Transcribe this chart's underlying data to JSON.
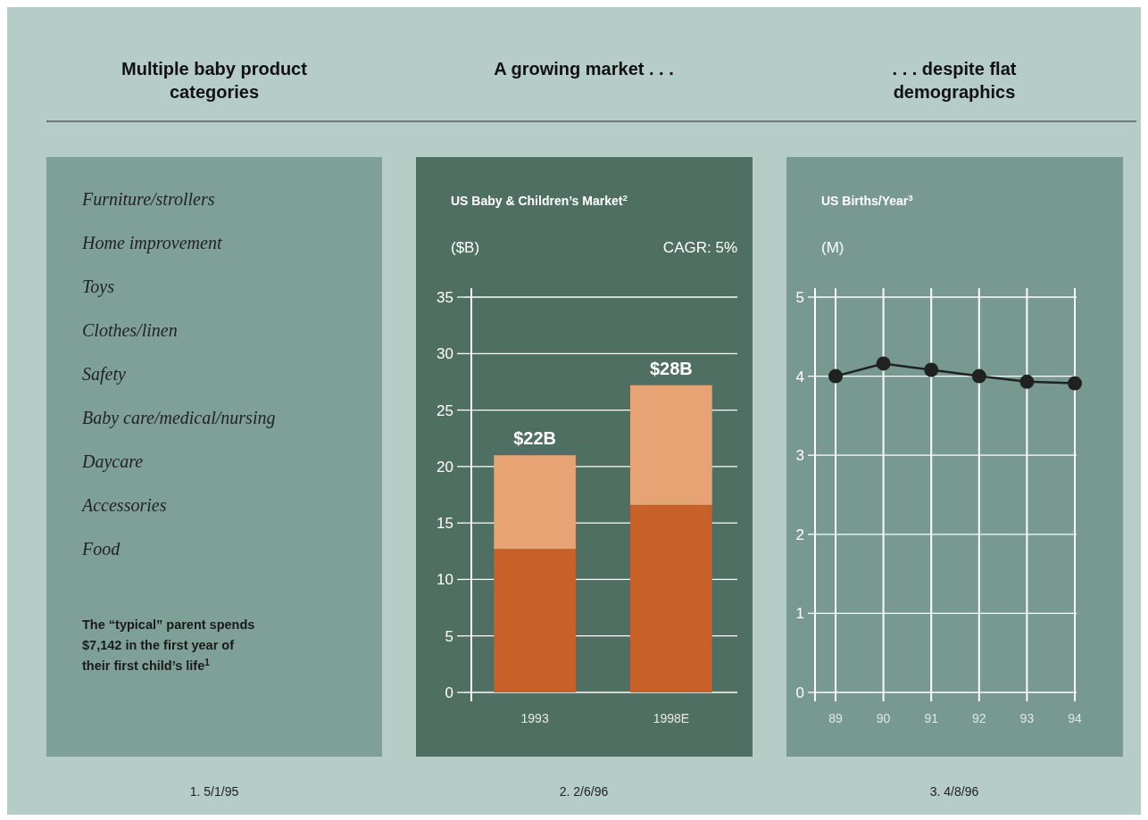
{
  "chart_data": [
    {
      "type": "other",
      "title": "Multiple baby product categories",
      "annotations": [
        "Furniture/strollers",
        "Home improvement",
        "Toys",
        "Clothes/linen",
        "Safety",
        "Baby care/medical/nursing",
        "Daycare",
        "Accessories",
        "Food",
        "The “typical” parent spends $7,142 in the first year of their first child’s life$^{1}$",
        "1. 5/1/95"
      ]
    },
    {
      "type": "bar",
      "title": "A growing market . . .",
      "subtitle": "US Baby & Children’s Market$^{2}$",
      "ylabel": "($B)",
      "annotations": [
        "CAGR: 5%",
        "2. 2/6/96"
      ],
      "categories": [
        "1993",
        "1998E"
      ],
      "stacked": true,
      "series": [
        {
          "color": "#c8602a",
          "values": [
            12.7,
            16.6
          ]
        },
        {
          "color": "#e8a374",
          "values": [
            8.3,
            10.6
          ]
        }
      ],
      "totals": [
        "$22B",
        "$28B"
      ],
      "ylim": [
        0,
        35
      ],
      "yticks": [
        0,
        5,
        10,
        15,
        20,
        25,
        30,
        35
      ],
      "grid": "y"
    },
    {
      "type": "line",
      "title": ". . . despite flat demographics",
      "subtitle": "US Births/Year$^{3}$",
      "ylabel": "(M)",
      "annotations": [
        "3. 4/8/96"
      ],
      "categories": [
        "89",
        "90",
        "91",
        "92",
        "93",
        "94"
      ],
      "series": [
        {
          "color": "#1f2220",
          "values": [
            4.0,
            4.16,
            4.08,
            4.0,
            3.93,
            3.91
          ]
        }
      ],
      "ylim": [
        0,
        5
      ],
      "yticks": [
        0,
        1,
        2,
        3,
        4,
        5
      ],
      "grid": true,
      "marker": "circle"
    }
  ]
}
